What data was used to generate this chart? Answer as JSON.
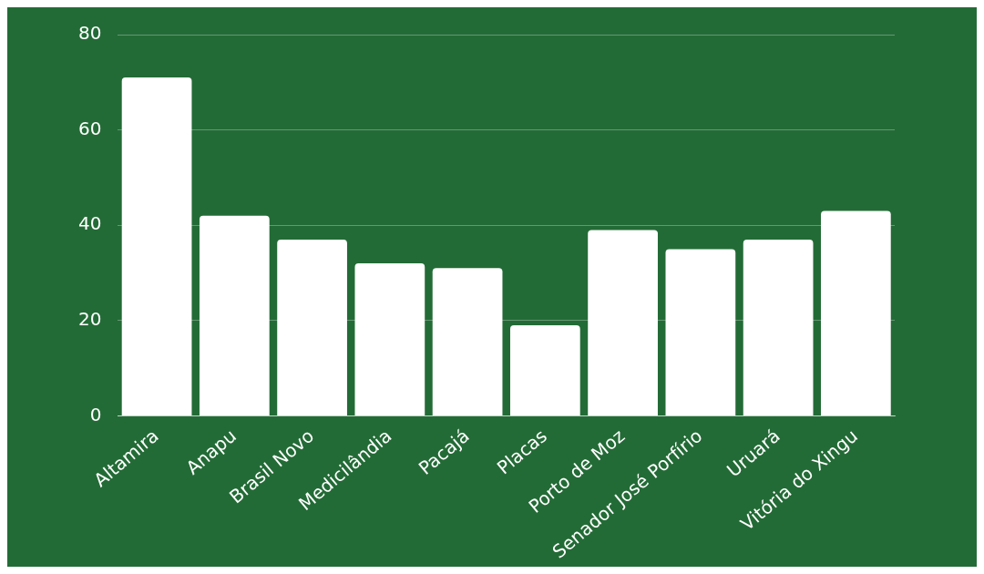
{
  "chart_data": {
    "type": "bar",
    "categories": [
      "Altamira",
      "Anapu",
      "Brasil Novo",
      "Medicilândia",
      "Pacajá",
      "Placas",
      "Porto de Moz",
      "Senador José Porfírio",
      "Uruará",
      "Vitória do Xingu"
    ],
    "values": [
      71,
      42,
      37,
      32,
      31,
      19,
      39,
      35,
      37,
      43
    ],
    "color": "#ffffff",
    "ylim": [
      0,
      80
    ],
    "yticks": [
      0,
      20,
      40,
      60,
      80
    ],
    "grid": "y",
    "legend": false
  }
}
